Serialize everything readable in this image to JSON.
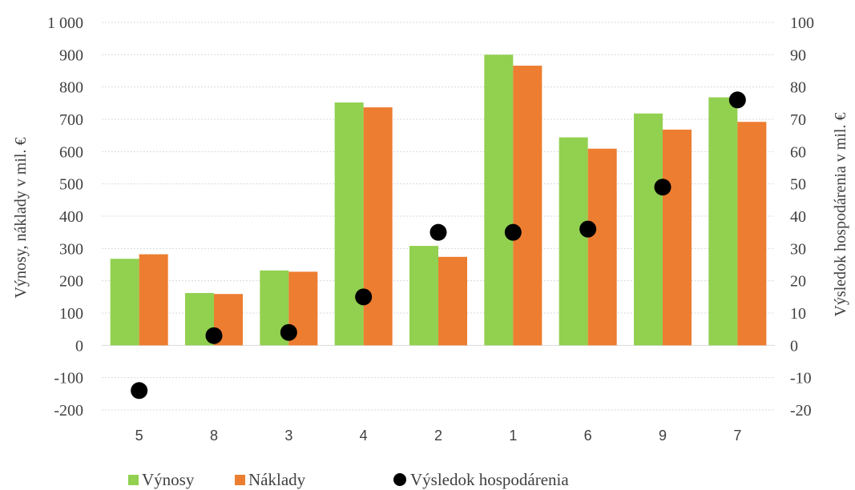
{
  "chart_data": {
    "type": "bar",
    "title": "",
    "categories": [
      "5",
      "8",
      "3",
      "4",
      "2",
      "1",
      "6",
      "9",
      "7"
    ],
    "series": [
      {
        "name": "Výnosy",
        "kind": "bar",
        "axis": "left",
        "color": "#92d050",
        "values": [
          268,
          162,
          232,
          752,
          308,
          900,
          644,
          718,
          768
        ]
      },
      {
        "name": "Náklady",
        "kind": "bar",
        "axis": "left",
        "color": "#ed7d31",
        "values": [
          282,
          159,
          228,
          737,
          274,
          866,
          609,
          668,
          692
        ]
      },
      {
        "name": "Výsledok hospodárenia",
        "kind": "scatter",
        "axis": "right",
        "color": "#000000",
        "values": [
          -14,
          3,
          4,
          15,
          35,
          35,
          36,
          49,
          76
        ]
      }
    ],
    "ylabel": "Výnosy, náklady v mil. €",
    "y2label": "Výsledok hospodárenia v mil. €",
    "ylim": [
      -200,
      1000
    ],
    "y2lim": [
      -20,
      100
    ],
    "yticks": [
      "1 000",
      "900",
      "800",
      "700",
      "600",
      "500",
      "400",
      "300",
      "200",
      "100",
      "0",
      "-100",
      "-200"
    ],
    "y2ticks": [
      "100",
      "90",
      "80",
      "70",
      "60",
      "50",
      "40",
      "30",
      "20",
      "10",
      "0",
      "-10",
      "-20"
    ],
    "grid": true,
    "legend_position": "bottom",
    "gridline_color": "#d9d9d9"
  }
}
